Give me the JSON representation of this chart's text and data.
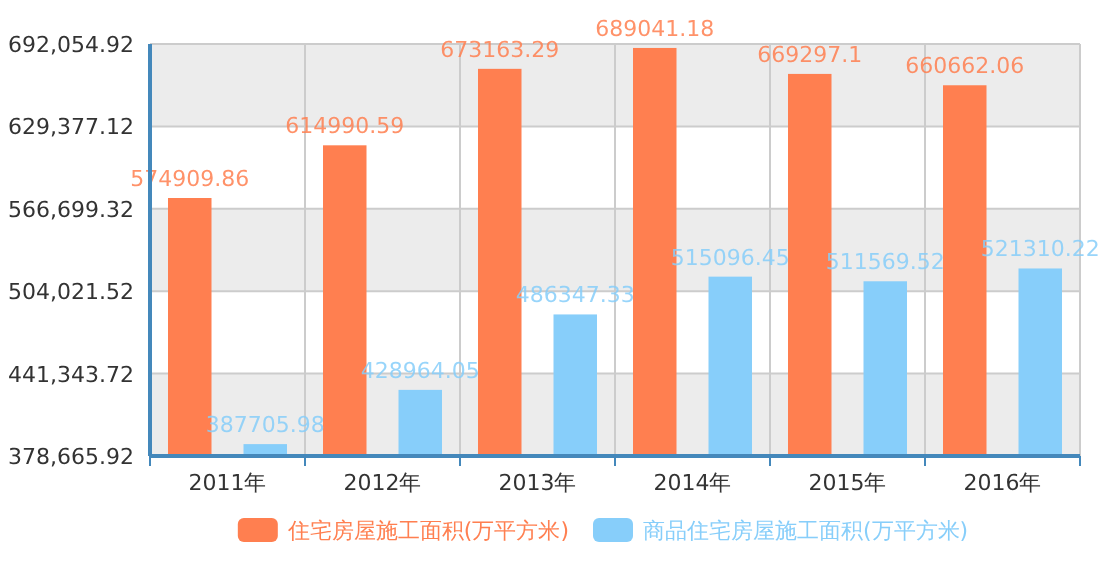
{
  "chart_data": {
    "type": "bar",
    "categories": [
      "2011年",
      "2012年",
      "2013年",
      "2014年",
      "2015年",
      "2016年"
    ],
    "series": [
      {
        "name": "住宅房屋施工面积(万平方米)",
        "color": "#ff7f50",
        "values": [
          574909.86,
          614990.59,
          673163.29,
          689041.18,
          669297.1,
          660662.06
        ]
      },
      {
        "name": "商品住宅房屋施工面积(万平方米)",
        "color": "#87cefa",
        "values": [
          387705.98,
          428964.05,
          486347.33,
          515096.45,
          511569.52,
          521310.22
        ]
      }
    ],
    "ylim": [
      378665.92,
      692054.92
    ],
    "yticks": [
      {
        "value": 378665.92,
        "label": "378,665.92"
      },
      {
        "value": 441343.72,
        "label": "441,343.72"
      },
      {
        "value": 504021.52,
        "label": "504,021.52"
      },
      {
        "value": 566699.32,
        "label": "566,699.32"
      },
      {
        "value": 629377.12,
        "label": "629,377.12"
      },
      {
        "value": 692054.92,
        "label": "692,054.92"
      }
    ],
    "data_labels": true,
    "grid": true,
    "legend": "bottom"
  }
}
